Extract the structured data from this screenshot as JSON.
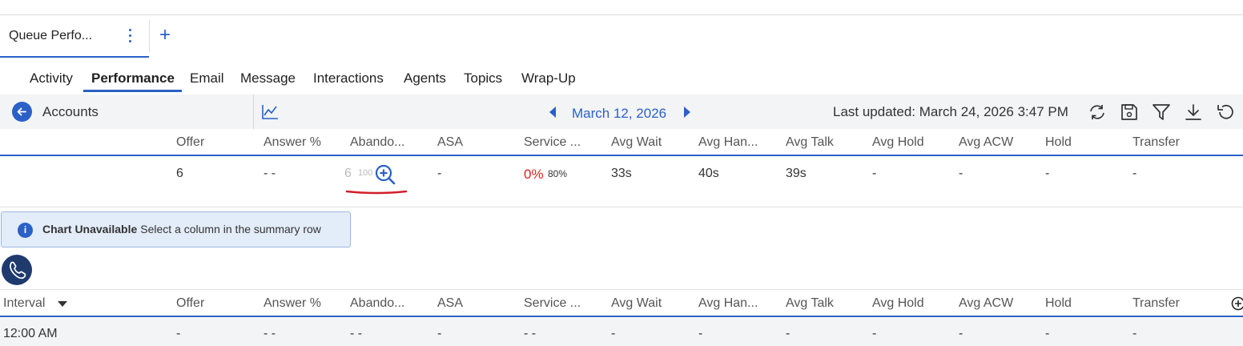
{
  "workspace_tab": {
    "label": "Queue Perfo...",
    "add_label": "+"
  },
  "subnav": {
    "tabs": [
      "Activity",
      "Performance",
      "Email",
      "Message",
      "Interactions",
      "Agents",
      "Topics",
      "Wrap-Up"
    ],
    "active": "Performance"
  },
  "toolbar": {
    "title": "Accounts",
    "date": "March 12, 2026",
    "last_updated": "Last updated: March 24, 2026 3:47 PM",
    "icons": [
      "back-icon",
      "line-chart-icon",
      "prev-icon",
      "next-icon",
      "refresh-icon",
      "save-icon",
      "filter-icon",
      "download-icon",
      "reset-icon"
    ]
  },
  "columns": [
    "Offer",
    "Answer %",
    "Abando...",
    "ASA",
    "Service ...",
    "Avg Wait",
    "Avg Han...",
    "Avg Talk",
    "Avg Hold",
    "Avg ACW",
    "Hold",
    "Transfer"
  ],
  "summary_row": {
    "offer": "6",
    "answer_pct": "- -",
    "abandon": "6",
    "abandon_pct": "100",
    "asa": "-",
    "service_level": "0%",
    "service_target": "80%",
    "avg_wait": "33s",
    "avg_handle": "40s",
    "avg_talk": "39s",
    "avg_hold": "-",
    "avg_acw": "-",
    "hold": "-",
    "transfer": "-"
  },
  "banner": {
    "title": "Chart Unavailable",
    "message": "Select a column in the summary row",
    "icon": "info-icon"
  },
  "interval_table": {
    "first_column": "Interval",
    "row": {
      "interval": "12:00 AM",
      "offer": "-",
      "answer_pct": "- -",
      "abandon": "- -",
      "asa": "-",
      "service_level": "- -",
      "avg_wait": "-",
      "avg_handle": "-",
      "avg_talk": "-",
      "avg_hold": "-",
      "avg_acw": "-",
      "hold": "-",
      "transfer": "-"
    }
  },
  "colors": {
    "accent": "#2a60c8",
    "danger": "#e02020",
    "dark_navy": "#1f3a6d",
    "banner_bg": "#e3ecf9"
  }
}
